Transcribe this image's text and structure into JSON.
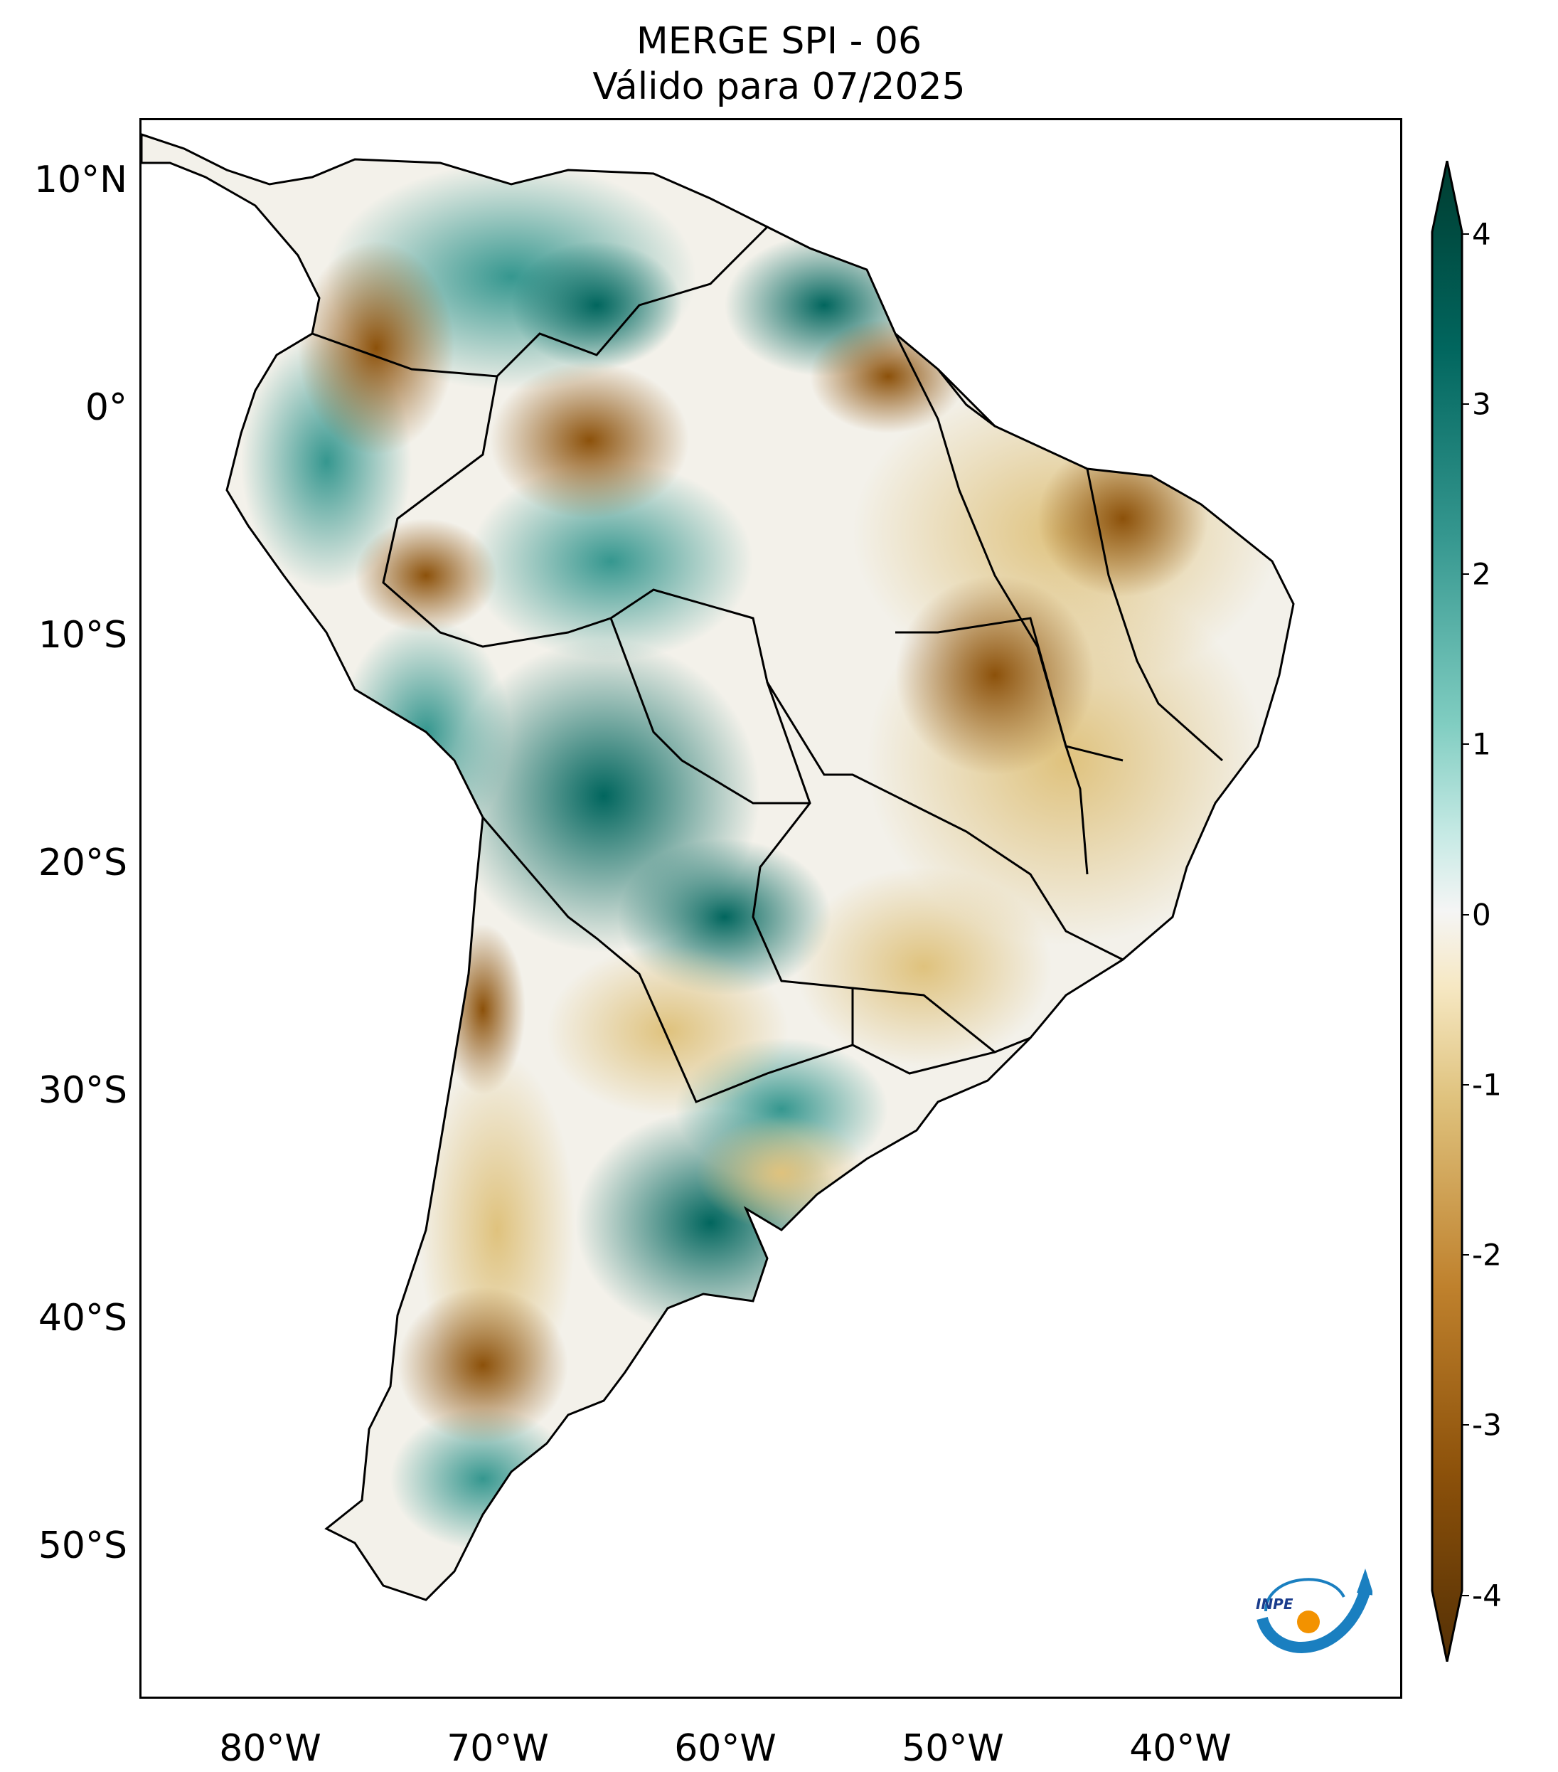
{
  "title": {
    "line1": "MERGE   SPI - 06",
    "line2": "Válido para 07/2025"
  },
  "lat_labels": [
    "10°N",
    "0°",
    "10°S",
    "20°S",
    "30°S",
    "40°S",
    "50°S"
  ],
  "lon_labels": [
    "80°W",
    "70°W",
    "60°W",
    "50°W",
    "40°W"
  ],
  "colorbar": {
    "ticks": [
      "4",
      "3",
      "2",
      "1",
      "0",
      "-1",
      "-2",
      "-3",
      "-4"
    ],
    "colors": {
      "max": "#003c30",
      "wet_strong": "#01665e",
      "wet": "#35978f",
      "wet_light": "#80cdc1",
      "wet_pale": "#c7eae5",
      "neutral": "#f5f5f5",
      "dry_pale": "#f6e8c3",
      "dry_light": "#dfc27d",
      "dry": "#bf812d",
      "dry_strong": "#8c510a",
      "min": "#543005"
    }
  },
  "logo": {
    "text": "INPE"
  }
}
